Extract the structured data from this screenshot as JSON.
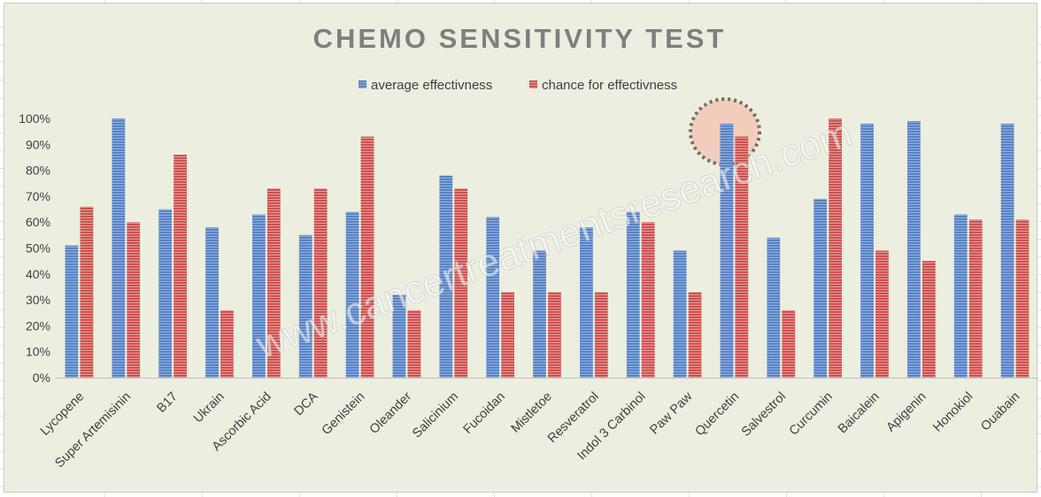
{
  "chart_data": {
    "type": "bar",
    "title": "CHEMO SENSITIVITY TEST",
    "categories": [
      "Lycopene",
      "Super Artemisinin",
      "B17",
      "Ukrain",
      "Ascorbic Acid",
      "DCA",
      "Genistein",
      "Oleander",
      "Salicinium",
      "Fucoidan",
      "Mistletoe",
      "Resveratrol",
      "Indol 3 Carbinol",
      "Paw Paw",
      "Quercetin",
      "Salvestrol",
      "Curcumin",
      "Baicalein",
      "Apigenin",
      "Honokiol",
      "Ouabain"
    ],
    "series": [
      {
        "name": "average effectivness",
        "color": "#4f81bd",
        "values": [
          51,
          100,
          65,
          58,
          63,
          55,
          64,
          32,
          78,
          62,
          49,
          58,
          64,
          49,
          98,
          54,
          69,
          98,
          99,
          63,
          98
        ]
      },
      {
        "name": "chance for effectivness",
        "color": "#c0504d",
        "values": [
          66,
          60,
          86,
          26,
          73,
          73,
          93,
          26,
          73,
          33,
          33,
          33,
          60,
          33,
          93,
          26,
          100,
          49,
          45,
          61,
          61
        ]
      }
    ],
    "ylim": [
      0,
      100
    ],
    "yticks": [
      "0%",
      "10%",
      "20%",
      "30%",
      "40%",
      "50%",
      "60%",
      "70%",
      "80%",
      "90%",
      "100%"
    ],
    "legend_position": "top",
    "gridlines": false,
    "highlight": {
      "category": "Quercetin",
      "color": "#f4c7b5"
    },
    "watermark": "www.cancertreatmentsresearch.com"
  }
}
